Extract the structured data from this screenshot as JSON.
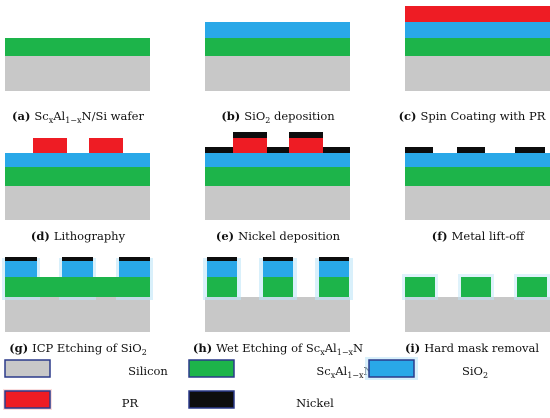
{
  "colors": {
    "silicon": "#c8c8c8",
    "scaln": "#1db44a",
    "sio2": "#29a8e8",
    "sio2_glow": "#bfe6f8",
    "pr": "#ee1c24",
    "nickel": "#0d0d0d",
    "swatch_border": "#2b3a8a"
  },
  "panels": [
    {
      "letter": "a",
      "text": "Sc",
      "sub1": "x",
      "mid": "Al",
      "sub2": "1−x",
      "rest": "N/Si wafer"
    },
    {
      "letter": "b",
      "text": "SiO",
      "sub1": "2",
      "mid": "",
      "sub2": "",
      "rest": " deposition"
    },
    {
      "letter": "c",
      "text": "Spin Coating with PR",
      "sub1": "",
      "mid": "",
      "sub2": "",
      "rest": ""
    },
    {
      "letter": "d",
      "text": "Lithography",
      "sub1": "",
      "mid": "",
      "sub2": "",
      "rest": ""
    },
    {
      "letter": "e",
      "text": "Nickel deposition",
      "sub1": "",
      "mid": "",
      "sub2": "",
      "rest": ""
    },
    {
      "letter": "f",
      "text": "Metal lift-off",
      "sub1": "",
      "mid": "",
      "sub2": "",
      "rest": ""
    },
    {
      "letter": "g",
      "text": "ICP Etching of SiO",
      "sub1": "2",
      "mid": "",
      "sub2": "",
      "rest": ""
    },
    {
      "letter": "h",
      "text": "Wet Etching of Sc",
      "sub1": "x",
      "mid": "Al",
      "sub2": "1−x",
      "rest": "N"
    },
    {
      "letter": "i",
      "text": "Hard mask removal",
      "sub1": "",
      "mid": "",
      "sub2": "",
      "rest": ""
    }
  ],
  "legend": [
    {
      "key": "silicon",
      "text": "Silicon",
      "sub": "",
      "after": ""
    },
    {
      "key": "scaln",
      "text": "Sc",
      "sub": "x",
      "mid": "Al",
      "sub2": "1−x",
      "after": "N"
    },
    {
      "key": "sio2",
      "text": "SiO",
      "sub": "2",
      "after": ""
    },
    {
      "key": "pr",
      "text": "PR",
      "sub": "",
      "after": ""
    },
    {
      "key": "nickel",
      "text": "Nickel",
      "sub": "",
      "after": ""
    }
  ]
}
